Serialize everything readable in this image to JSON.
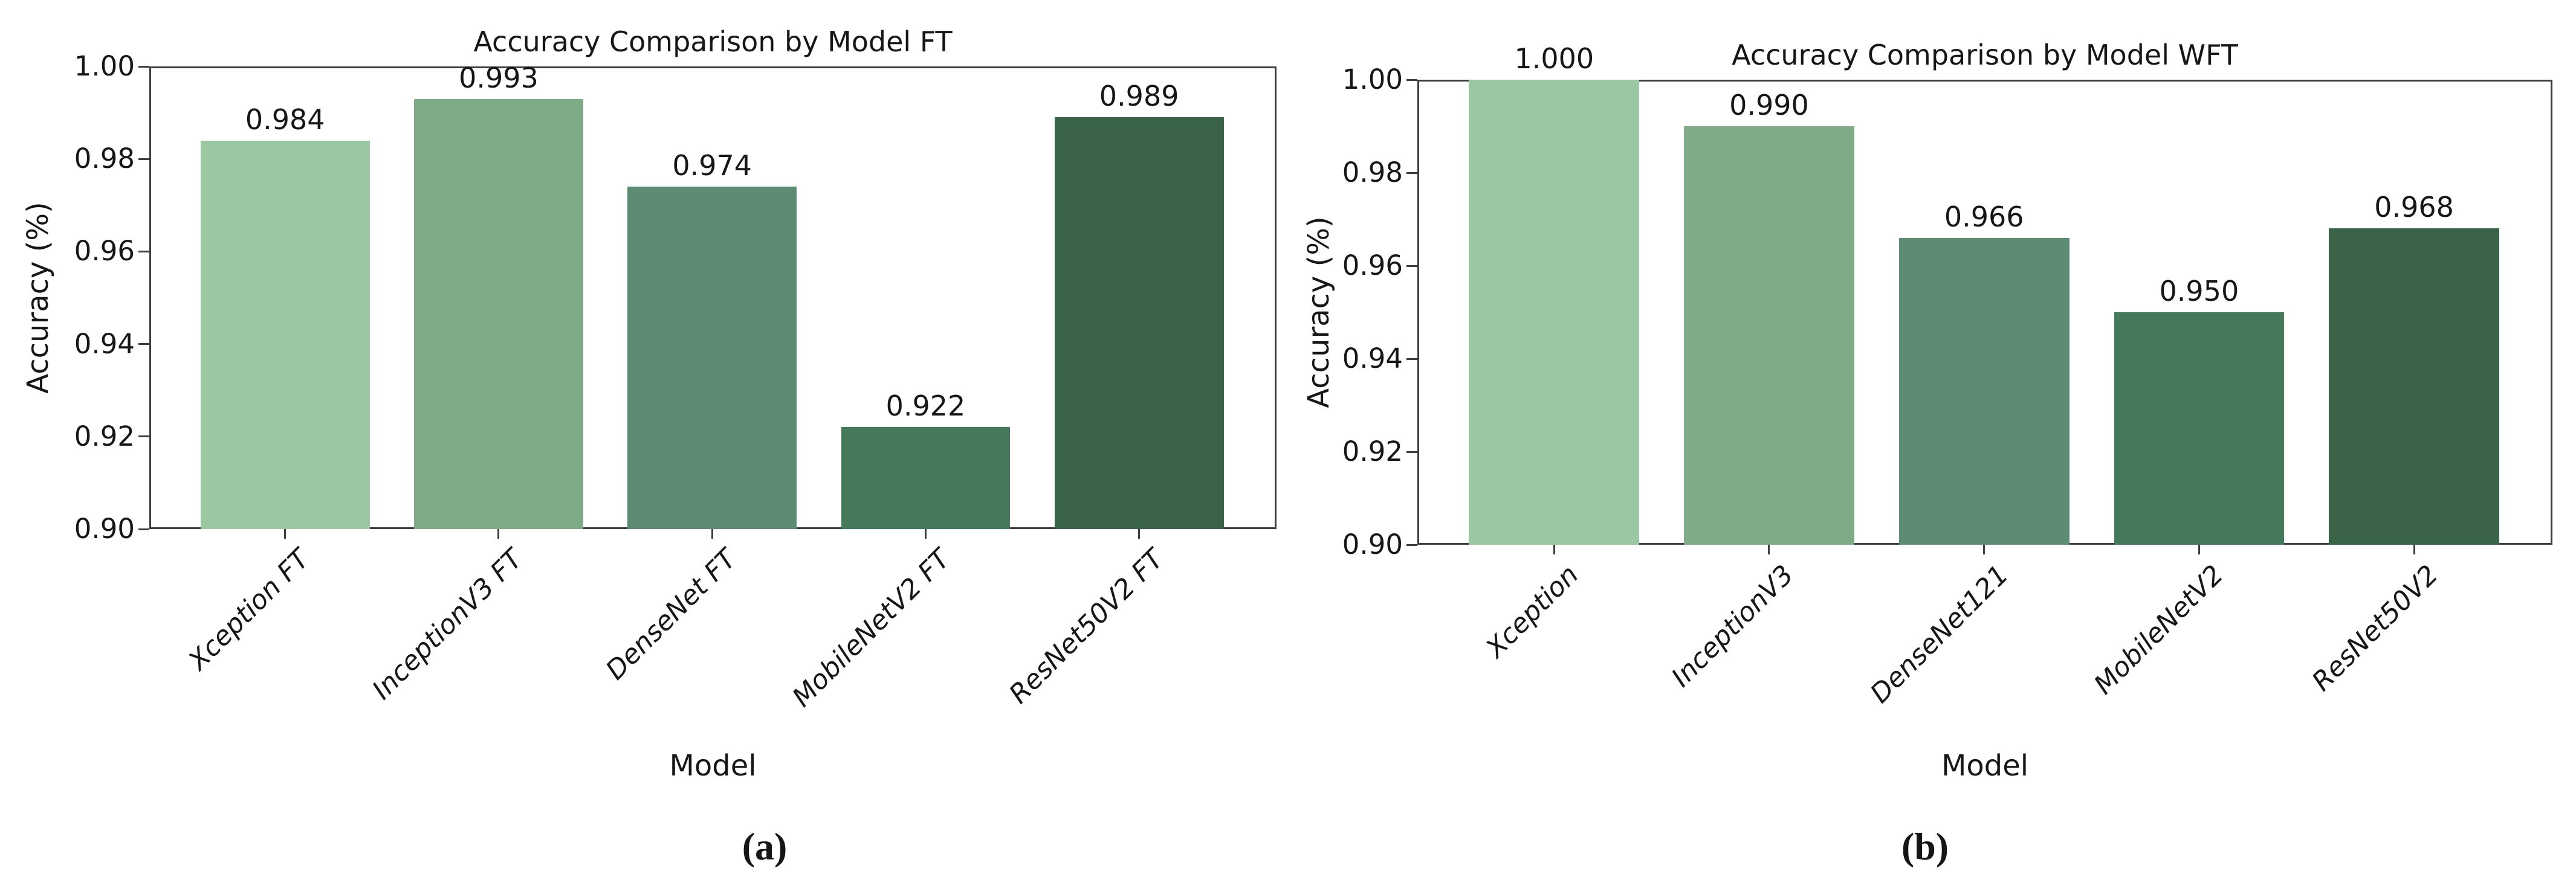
{
  "figure": {
    "background": "#ffffff",
    "text_color": "#161616",
    "spine_color": "#3f3f3f"
  },
  "chart_data": [
    {
      "type": "bar",
      "panel_label": "(a)",
      "title": "Accuracy Comparison by Model FT",
      "xlabel": "Model",
      "ylabel": "Accuracy (%)",
      "categories": [
        "Xception FT",
        "InceptionV3 FT",
        "DenseNet FT",
        "MobileNetV2 FT",
        "ResNet50V2 FT"
      ],
      "values": [
        0.984,
        0.993,
        0.974,
        0.922,
        0.989
      ],
      "value_labels": [
        "0.984",
        "0.993",
        "0.974",
        "0.922",
        "0.989"
      ],
      "ylim": [
        0.9,
        1.0
      ],
      "ytick_labels": [
        "1.00",
        "0.98",
        "0.96",
        "0.94",
        "0.92",
        "0.90"
      ],
      "bar_colors": [
        "#9bc8a2",
        "#7fab89",
        "#5e8b74",
        "#447a59",
        "#3a6347"
      ],
      "grid": false,
      "legend": "none"
    },
    {
      "type": "bar",
      "panel_label": "(b)",
      "title": "Accuracy Comparison by Model WFT",
      "xlabel": "Model",
      "ylabel": "Accuracy (%)",
      "categories": [
        "Xception",
        "InceptionV3",
        "DenseNet121",
        "MobileNetV2",
        "ResNet50V2"
      ],
      "values": [
        1.0,
        0.99,
        0.966,
        0.95,
        0.968
      ],
      "value_labels": [
        "1.000",
        "0.990",
        "0.966",
        "0.950",
        "0.968"
      ],
      "ylim": [
        0.9,
        1.0
      ],
      "ytick_labels": [
        "1.00",
        "0.98",
        "0.96",
        "0.94",
        "0.92",
        "0.90"
      ],
      "bar_colors": [
        "#9bc8a2",
        "#7fab89",
        "#5e8b74",
        "#447a59",
        "#3a6347"
      ],
      "grid": false,
      "legend": "none"
    }
  ]
}
